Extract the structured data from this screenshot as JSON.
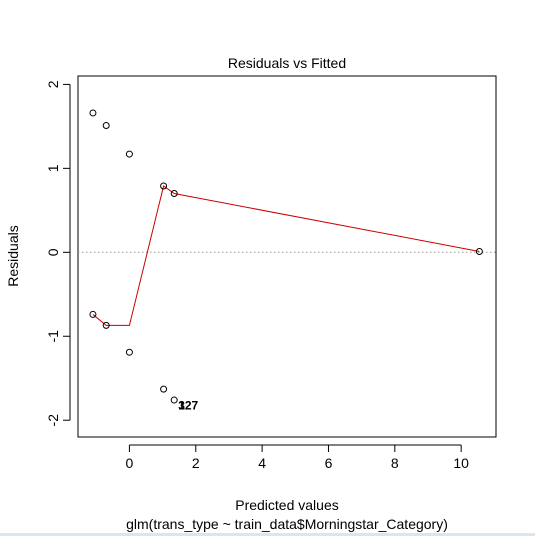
{
  "chart_data": {
    "type": "scatter",
    "title": "Residuals vs Fitted",
    "xlabel": "Predicted values",
    "ylabel": "Residuals",
    "subtitle": "glm(trans_type ~ train_data$Morningstar_Category)",
    "xlim": [
      -1.55,
      11.05
    ],
    "ylim": [
      -2.2,
      2.1
    ],
    "xticks": [
      0,
      2,
      4,
      6,
      8,
      10
    ],
    "yticks": [
      -2,
      -1,
      0,
      1,
      2
    ],
    "points": [
      {
        "x": -1.1,
        "y": 1.66
      },
      {
        "x": -0.7,
        "y": 1.51
      },
      {
        "x": 0.0,
        "y": 1.17
      },
      {
        "x": 1.03,
        "y": 0.79
      },
      {
        "x": 1.35,
        "y": 0.7
      },
      {
        "x": 10.55,
        "y": 0.01
      },
      {
        "x": -1.1,
        "y": -0.74
      },
      {
        "x": -0.7,
        "y": -0.87
      },
      {
        "x": 0.0,
        "y": -1.19
      },
      {
        "x": 1.03,
        "y": -1.63
      },
      {
        "x": 1.35,
        "y": -1.76
      }
    ],
    "smooth_line": [
      {
        "x": -1.1,
        "y": -0.74
      },
      {
        "x": -0.7,
        "y": -0.87
      },
      {
        "x": 0.0,
        "y": -0.87
      },
      {
        "x": 1.03,
        "y": 0.79
      },
      {
        "x": 1.35,
        "y": 0.7
      },
      {
        "x": 10.55,
        "y": 0.01
      }
    ],
    "reference_line_y": 0,
    "annotations": [
      {
        "text": "327",
        "x": 1.35,
        "y": -1.8
      },
      {
        "text": "1",
        "x": 1.35,
        "y": -1.8
      }
    ],
    "grid": false,
    "colors": {
      "points": "#000000",
      "smooth": "#cc0000",
      "reference": "#999999",
      "axis": "#000000"
    }
  }
}
